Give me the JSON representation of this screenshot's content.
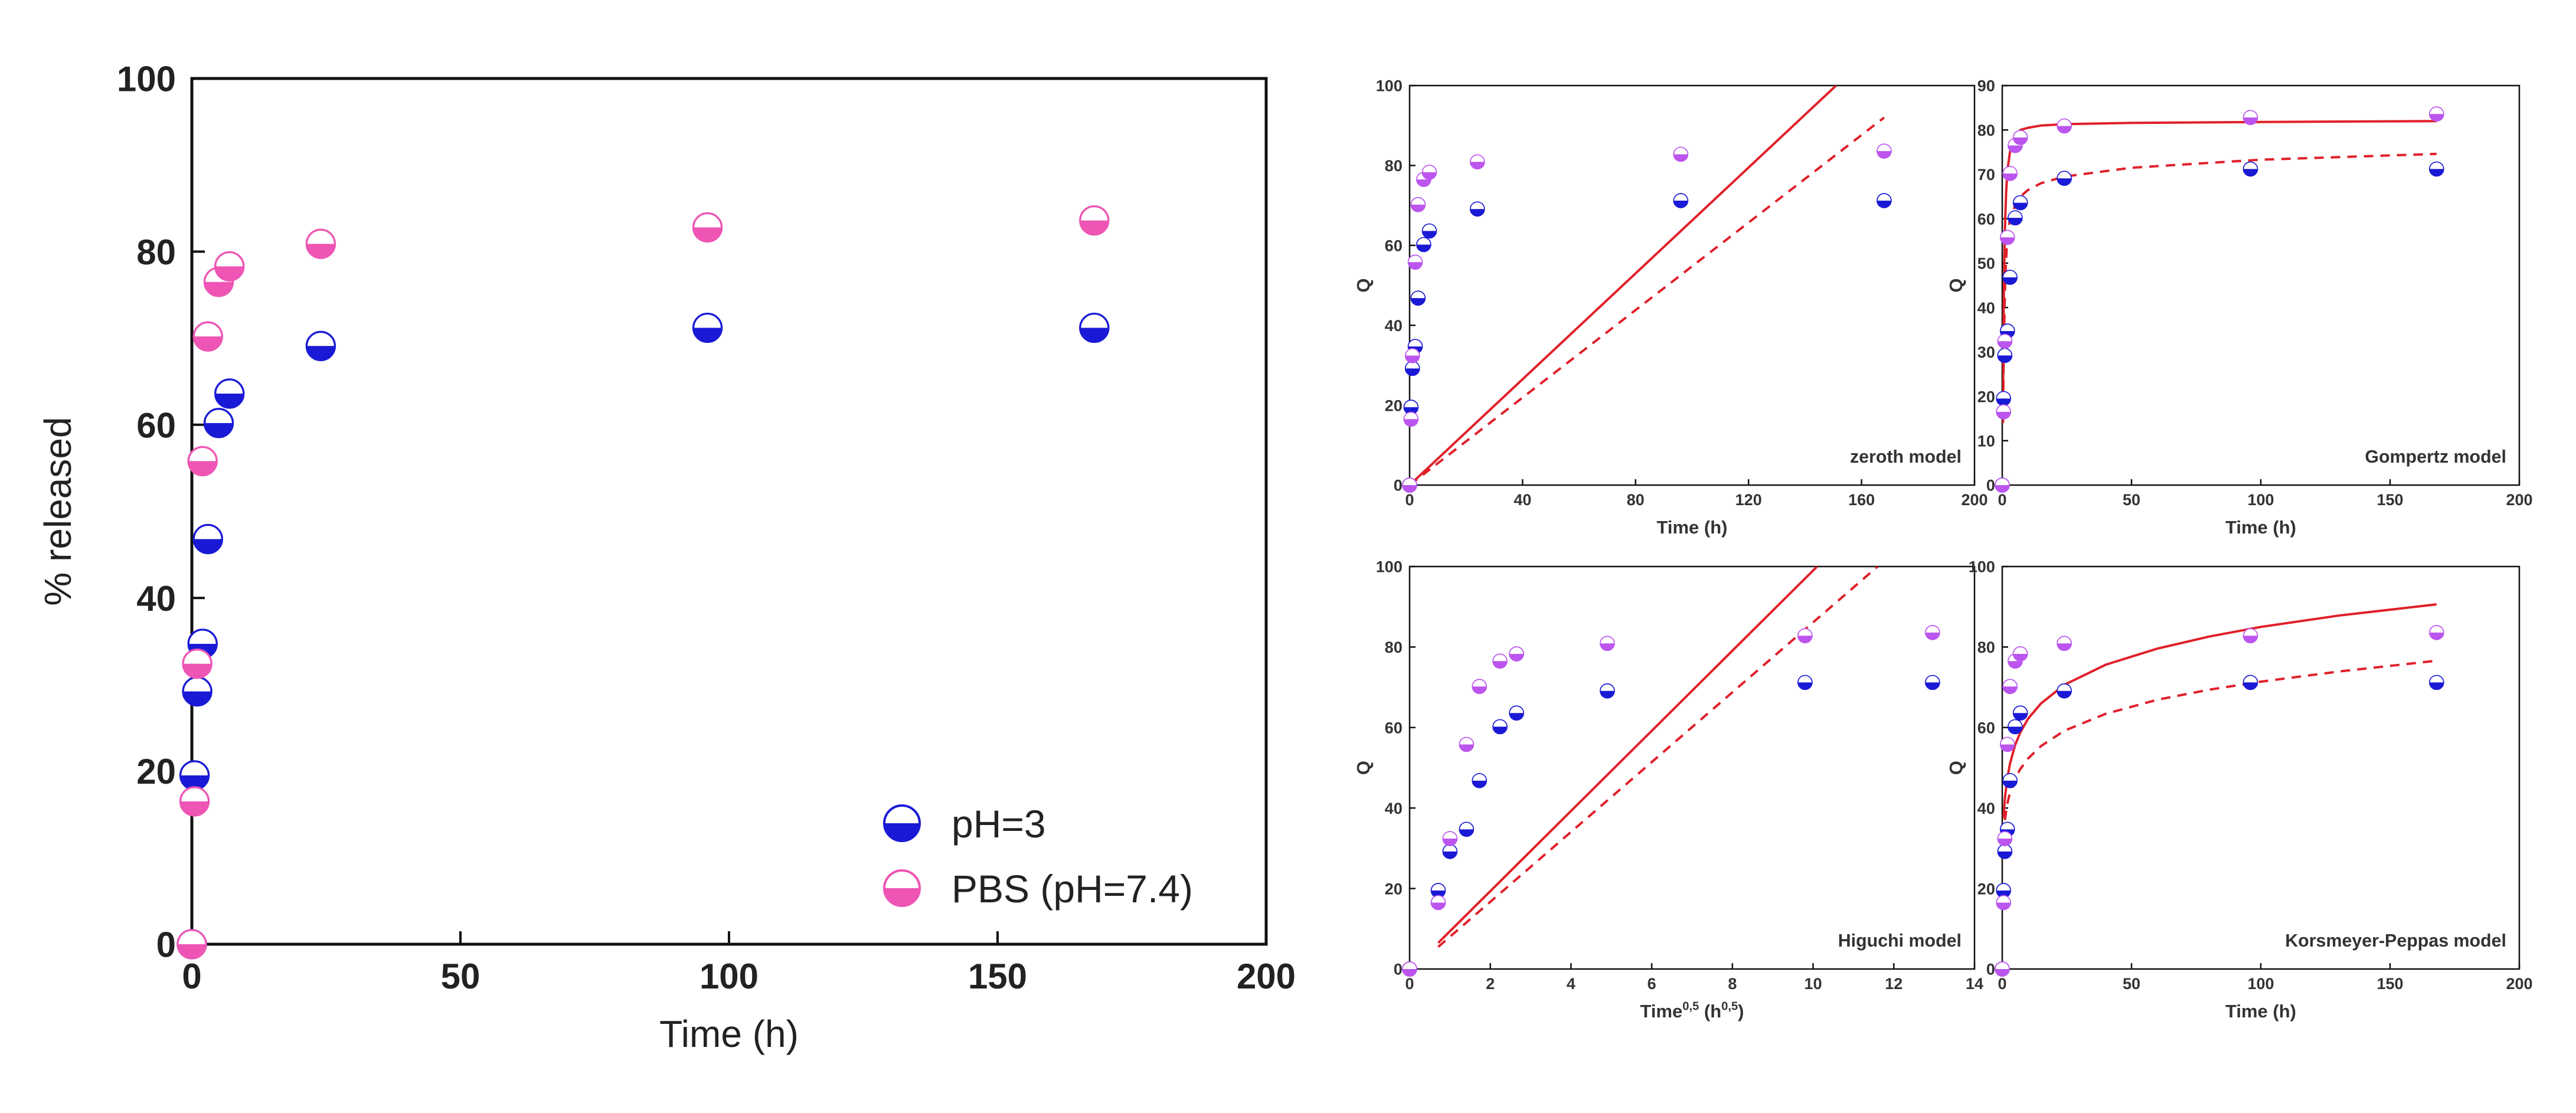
{
  "chart_data": [
    {
      "type": "scatter",
      "title": "",
      "xlabel": "Time (h)",
      "ylabel": "% released",
      "xlim": [
        0,
        200
      ],
      "ylim": [
        0,
        100
      ],
      "xticks": [
        0,
        50,
        100,
        150,
        200
      ],
      "yticks": [
        0,
        20,
        40,
        60,
        80,
        100
      ],
      "legend_position": "bottom-right",
      "series": [
        {
          "name": "pH=3",
          "color": "#1a1ad6",
          "x": [
            0,
            0.5,
            1,
            2,
            3,
            5,
            7,
            24,
            96,
            168
          ],
          "y": [
            0,
            19.5,
            29.2,
            34.7,
            46.8,
            60.2,
            63.6,
            69.1,
            71.2,
            71.2
          ]
        },
        {
          "name": "PBS (pH=7.4)",
          "color": "#ee55b4",
          "x": [
            0,
            0.5,
            1,
            2,
            3,
            5,
            7,
            24,
            96,
            168
          ],
          "y": [
            0,
            16.5,
            32.4,
            55.8,
            70.2,
            76.5,
            78.3,
            80.9,
            82.8,
            83.6
          ]
        }
      ]
    },
    {
      "type": "scatter",
      "title": "",
      "annotation": "zeroth model",
      "xlabel": "Time (h)",
      "ylabel": "Q",
      "xlim": [
        0,
        200
      ],
      "ylim": [
        0,
        100
      ],
      "xticks": [
        0,
        40,
        80,
        120,
        160,
        200
      ],
      "yticks": [
        0,
        20,
        40,
        60,
        80,
        100
      ],
      "series": [
        {
          "color": "#1a1ad6",
          "x": [
            0,
            0.5,
            1,
            2,
            3,
            5,
            7,
            24,
            96,
            168
          ],
          "y": [
            0,
            19.5,
            29.2,
            34.7,
            46.8,
            60.2,
            63.6,
            69.1,
            71.2,
            71.2
          ]
        },
        {
          "color": "#bb55ee",
          "x": [
            0,
            0.5,
            1,
            2,
            3,
            5,
            7,
            24,
            96,
            168
          ],
          "y": [
            0,
            16.5,
            32.4,
            55.8,
            70.2,
            76.5,
            78.3,
            80.9,
            82.8,
            83.6
          ]
        }
      ],
      "fits": [
        {
          "style": "solid",
          "x": [
            0,
            151
          ],
          "y": [
            0,
            100
          ]
        },
        {
          "style": "dashed",
          "x": [
            0,
            168
          ],
          "y": [
            0,
            92
          ]
        }
      ]
    },
    {
      "type": "scatter",
      "title": "",
      "annotation": "Gompertz model",
      "xlabel": "Time (h)",
      "ylabel": "Q",
      "xlim": [
        0,
        200
      ],
      "ylim": [
        0,
        90
      ],
      "xticks": [
        0,
        50,
        100,
        150,
        200
      ],
      "yticks": [
        0,
        10,
        20,
        30,
        40,
        50,
        60,
        70,
        80,
        90
      ],
      "series": [
        {
          "color": "#1a1ad6",
          "x": [
            0,
            0.5,
            1,
            2,
            3,
            5,
            7,
            24,
            96,
            168
          ],
          "y": [
            0,
            19.5,
            29.2,
            34.7,
            46.8,
            60.2,
            63.6,
            69.1,
            71.2,
            71.2
          ]
        },
        {
          "color": "#bb55ee",
          "x": [
            0,
            0.5,
            1,
            2,
            3,
            5,
            7,
            24,
            96,
            168
          ],
          "y": [
            0,
            16.5,
            32.4,
            55.8,
            70.2,
            76.5,
            78.3,
            80.9,
            82.8,
            83.6
          ]
        }
      ],
      "fits": [
        {
          "style": "solid",
          "x": [
            0.3,
            0.6,
            1,
            1.5,
            2,
            3,
            4,
            5,
            7,
            10,
            15,
            24,
            50,
            100,
            168
          ],
          "y": [
            20,
            42,
            57,
            66,
            71,
            75,
            77,
            78.5,
            80,
            80.5,
            81,
            81.3,
            81.6,
            81.8,
            82
          ]
        },
        {
          "style": "dashed",
          "x": [
            0.3,
            0.6,
            1,
            1.5,
            2,
            3,
            5,
            7,
            10,
            15,
            24,
            50,
            100,
            168
          ],
          "y": [
            14,
            30,
            43,
            51,
            56,
            60,
            63,
            65,
            66.5,
            68,
            69.5,
            71.5,
            73.3,
            74.6
          ]
        }
      ]
    },
    {
      "type": "scatter",
      "title": "",
      "annotation": "Higuchi model",
      "xlabel": "Time0,5 (h0,5)",
      "ylabel": "Q",
      "xlim": [
        0,
        14
      ],
      "ylim": [
        0,
        100
      ],
      "xticks": [
        0,
        2,
        4,
        6,
        8,
        10,
        12,
        14
      ],
      "yticks": [
        0,
        20,
        40,
        60,
        80,
        100
      ],
      "series": [
        {
          "color": "#1a1ad6",
          "x": [
            0,
            0.71,
            1,
            1.41,
            1.73,
            2.24,
            2.65,
            4.9,
            9.8,
            12.96
          ],
          "y": [
            0,
            19.5,
            29.2,
            34.7,
            46.8,
            60.2,
            63.6,
            69.1,
            71.2,
            71.2
          ]
        },
        {
          "color": "#bb55ee",
          "x": [
            0,
            0.71,
            1,
            1.41,
            1.73,
            2.24,
            2.65,
            4.9,
            9.8,
            12.96
          ],
          "y": [
            0,
            16.5,
            32.4,
            55.8,
            70.2,
            76.5,
            78.3,
            80.9,
            82.8,
            83.6
          ]
        }
      ],
      "fits": [
        {
          "style": "solid",
          "x": [
            0.71,
            10.1
          ],
          "y": [
            6.5,
            100
          ]
        },
        {
          "style": "dashed",
          "x": [
            0.71,
            11.6
          ],
          "y": [
            5.5,
            100
          ]
        }
      ]
    },
    {
      "type": "scatter",
      "title": "",
      "annotation": "Korsmeyer-Peppas model",
      "xlabel": "Time (h)",
      "ylabel": "Q",
      "xlim": [
        0,
        200
      ],
      "ylim": [
        0,
        100
      ],
      "xticks": [
        0,
        50,
        100,
        150,
        200
      ],
      "yticks": [
        0,
        20,
        40,
        60,
        80,
        100
      ],
      "series": [
        {
          "color": "#1a1ad6",
          "x": [
            0,
            0.5,
            1,
            2,
            3,
            5,
            7,
            24,
            96,
            168
          ],
          "y": [
            0,
            19.5,
            29.2,
            34.7,
            46.8,
            60.2,
            63.6,
            69.1,
            71.2,
            71.2
          ]
        },
        {
          "color": "#bb55ee",
          "x": [
            0,
            0.5,
            1,
            2,
            3,
            5,
            7,
            24,
            96,
            168
          ],
          "y": [
            0,
            16.5,
            32.4,
            55.8,
            70.2,
            76.5,
            78.3,
            80.9,
            82.8,
            83.6
          ]
        }
      ],
      "fits": [
        {
          "style": "solid",
          "x": [
            0.5,
            1,
            2,
            3,
            5,
            7,
            10,
            15,
            24,
            40,
            60,
            80,
            100,
            130,
            168
          ],
          "y": [
            37.5,
            42.3,
            47.6,
            51,
            55.7,
            58.8,
            62.2,
            66,
            70.6,
            75.6,
            79.6,
            82.6,
            85,
            87.8,
            90.6
          ]
        },
        {
          "style": "dashed",
          "x": [
            1,
            2,
            3,
            5,
            7,
            10,
            15,
            24,
            40,
            60,
            80,
            100,
            130,
            168
          ],
          "y": [
            37,
            41.2,
            43.8,
            47.4,
            49.7,
            52.3,
            55.4,
            59.2,
            63.4,
            66.9,
            69.4,
            71.4,
            73.9,
            76.6
          ]
        }
      ]
    }
  ]
}
